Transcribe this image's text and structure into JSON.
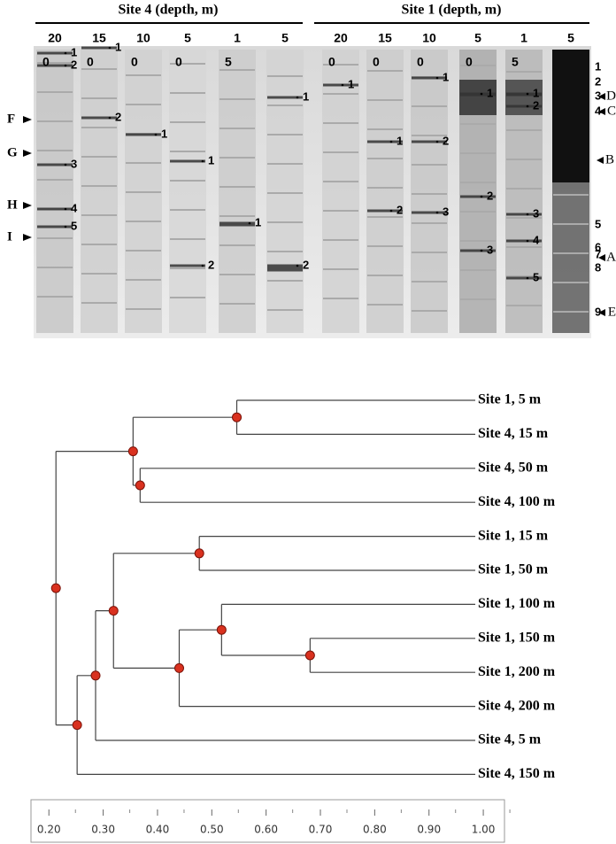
{
  "gel": {
    "headers": [
      "Site 4 (depth, m)",
      "Site 1 (depth, m)"
    ],
    "depths": [
      [
        20,
        15,
        10,
        5,
        1,
        5
      ],
      [
        20,
        15,
        10,
        5,
        1,
        5
      ]
    ],
    "sublabels": [
      [
        0,
        0,
        0,
        0,
        5
      ],
      [
        0,
        0,
        0,
        0,
        5
      ]
    ],
    "band_labels": [
      [
        "1",
        "2",
        "3",
        "4",
        "5"
      ],
      [
        "1",
        "2"
      ],
      [
        "1"
      ],
      [
        "1",
        "2"
      ],
      [
        "1"
      ],
      [
        "1",
        "2"
      ],
      [
        "1"
      ],
      [
        "1",
        "2"
      ],
      [
        "1",
        "2",
        "3"
      ],
      [
        "1",
        "2",
        "3"
      ],
      [
        "1",
        "2",
        "3",
        "4",
        "5"
      ],
      [
        "1",
        "2",
        "3",
        "4",
        "5",
        "6",
        "7",
        "8",
        "9"
      ]
    ],
    "left_markers": [
      "F",
      "G",
      "H",
      "I"
    ],
    "right_markers": [
      "D",
      "C",
      "B",
      "A",
      "E"
    ]
  },
  "chart_data": {
    "type": "dendrogram",
    "xlim": [
      0.167,
      1.039
    ],
    "xticks": [
      {
        "value": 0.2,
        "label": "0.20"
      },
      {
        "value": 0.3,
        "label": "0.30"
      },
      {
        "value": 0.4,
        "label": "0.40"
      },
      {
        "value": 0.5,
        "label": "0.50"
      },
      {
        "value": 0.6,
        "label": "0.60"
      },
      {
        "value": 0.7,
        "label": "0.70"
      },
      {
        "value": 0.8,
        "label": "0.80"
      },
      {
        "value": 0.9,
        "label": "0.90"
      },
      {
        "value": 1.0,
        "label": "1.00"
      }
    ],
    "node_color": "#d9311f",
    "tree": {
      "height": 0.213,
      "children": [
        {
          "height": 0.355,
          "children": [
            {
              "height": 0.546,
              "children": [
                {
                  "label": "Site 1, 5 m"
                },
                {
                  "label": "Site 4, 15 m"
                }
              ]
            },
            {
              "height": 0.368,
              "children": [
                {
                  "label": "Site 4, 50 m"
                },
                {
                  "label": "Site 4, 100 m"
                }
              ]
            }
          ]
        },
        {
          "height": 0.252,
          "children": [
            {
              "height": 0.286,
              "children": [
                {
                  "height": 0.319,
                  "children": [
                    {
                      "height": 0.477,
                      "children": [
                        {
                          "label": "Site 1, 15 m"
                        },
                        {
                          "label": "Site 1, 50 m"
                        }
                      ]
                    },
                    {
                      "height": 0.44,
                      "children": [
                        {
                          "height": 0.518,
                          "children": [
                            {
                              "label": "Site 1, 100 m"
                            },
                            {
                              "height": 0.681,
                              "children": [
                                {
                                  "label": "Site 1, 150 m"
                                },
                                {
                                  "label": "Site 1, 200 m"
                                }
                              ]
                            }
                          ]
                        },
                        {
                          "label": "Site 4, 200 m"
                        }
                      ]
                    }
                  ]
                },
                {
                  "label": "Site 4, 5 m"
                }
              ]
            },
            {
              "label": "Site 4, 150 m"
            }
          ]
        }
      ]
    }
  }
}
